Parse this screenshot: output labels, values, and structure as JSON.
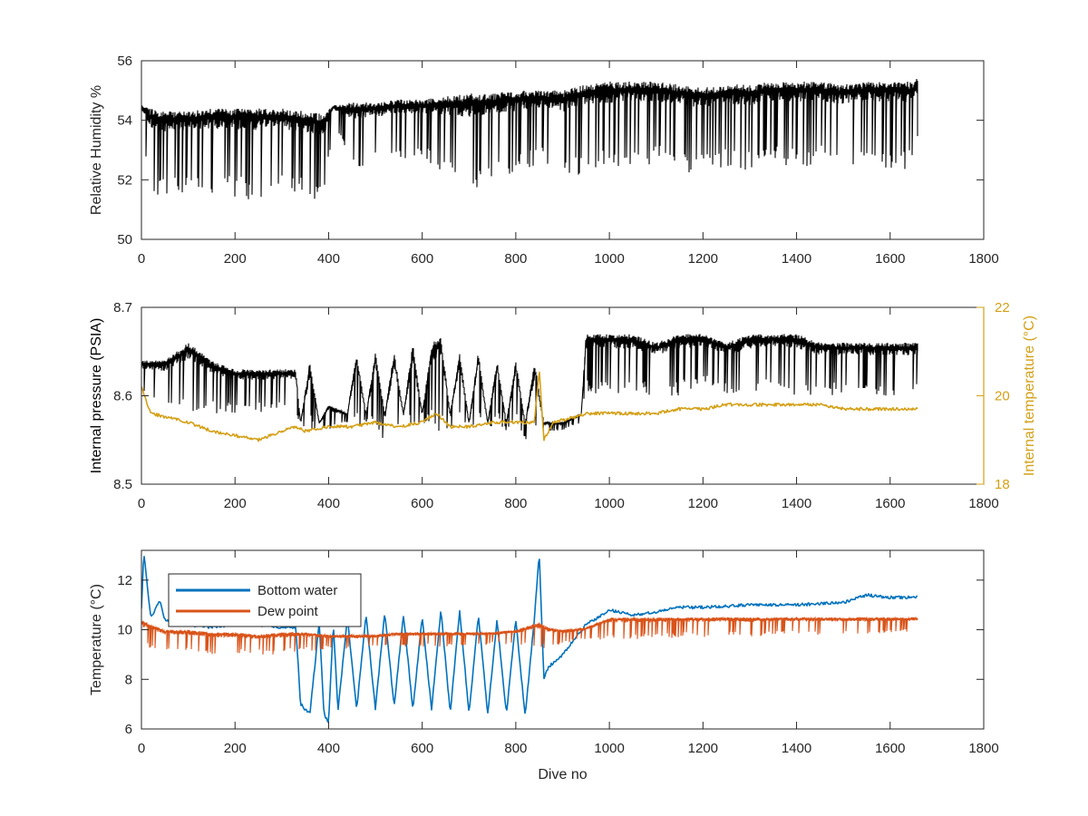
{
  "chart_data": [
    {
      "type": "line",
      "xlabel": "",
      "ylabel": "Relative Humidity %",
      "xlim": [
        0,
        1800
      ],
      "ylim": [
        50,
        56
      ],
      "xticks": [
        0,
        200,
        400,
        600,
        800,
        1000,
        1200,
        1400,
        1600,
        1800
      ],
      "yticks": [
        50,
        52,
        54,
        56
      ],
      "grid": false,
      "series": [
        {
          "color": "#000000",
          "x": [
            0,
            20,
            40,
            60,
            100,
            150,
            200,
            250,
            300,
            350,
            390,
            410,
            450,
            500,
            550,
            600,
            650,
            700,
            750,
            800,
            850,
            900,
            950,
            1000,
            1050,
            1100,
            1150,
            1200,
            1250,
            1300,
            1350,
            1400,
            1450,
            1500,
            1550,
            1600,
            1650,
            1660
          ],
          "upper": [
            54.5,
            54.4,
            54.3,
            54.3,
            54.3,
            54.4,
            54.4,
            54.4,
            54.4,
            54.3,
            54.2,
            54.5,
            54.6,
            54.6,
            54.7,
            54.7,
            54.8,
            54.9,
            54.9,
            55.0,
            55.0,
            55.0,
            55.2,
            55.3,
            55.3,
            55.3,
            55.2,
            55.1,
            55.2,
            55.2,
            55.3,
            55.3,
            55.3,
            55.2,
            55.3,
            55.3,
            55.3,
            55.5
          ],
          "lower": [
            54.0,
            51.4,
            51.4,
            51.5,
            51.6,
            51.5,
            51.4,
            51.3,
            51.5,
            51.3,
            51.2,
            53.8,
            52.3,
            52.5,
            52.6,
            52.7,
            52.1,
            51.6,
            52.0,
            52.1,
            52.6,
            51.9,
            52.3,
            52.3,
            52.4,
            52.5,
            52.3,
            52.1,
            52.4,
            52.3,
            52.6,
            52.4,
            52.5,
            52.4,
            52.4,
            52.4,
            52.3,
            53.6
          ]
        }
      ]
    },
    {
      "type": "line",
      "xlabel": "",
      "ylabel": "Internal pressure (PSIA)",
      "y2label": "Internal temperature (°C)",
      "xlim": [
        0,
        1800
      ],
      "ylim": [
        8.5,
        8.7
      ],
      "y2lim": [
        18,
        22
      ],
      "xticks": [
        0,
        200,
        400,
        600,
        800,
        1000,
        1200,
        1400,
        1600,
        1800
      ],
      "yticks": [
        8.5,
        8.6,
        8.7
      ],
      "y2ticks": [
        18,
        20,
        22
      ],
      "grid": false,
      "series": [
        {
          "color": "#000000",
          "axis": "left",
          "x": [
            0,
            50,
            100,
            150,
            200,
            250,
            300,
            330,
            340,
            360,
            380,
            400,
            440,
            460,
            480,
            500,
            520,
            540,
            560,
            580,
            600,
            620,
            640,
            660,
            680,
            700,
            720,
            740,
            760,
            780,
            800,
            820,
            840,
            860,
            880,
            900,
            940,
            950,
            1000,
            1050,
            1100,
            1150,
            1200,
            1250,
            1300,
            1350,
            1400,
            1450,
            1500,
            1550,
            1600,
            1650,
            1660
          ],
          "upper": [
            8.64,
            8.64,
            8.66,
            8.64,
            8.63,
            8.63,
            8.63,
            8.63,
            8.57,
            8.64,
            8.57,
            8.59,
            8.58,
            8.65,
            8.58,
            8.65,
            8.58,
            8.65,
            8.58,
            8.66,
            8.58,
            8.66,
            8.67,
            8.58,
            8.65,
            8.57,
            8.65,
            8.57,
            8.64,
            8.57,
            8.64,
            8.57,
            8.64,
            8.57,
            8.57,
            8.57,
            8.58,
            8.67,
            8.67,
            8.67,
            8.66,
            8.67,
            8.67,
            8.66,
            8.67,
            8.67,
            8.67,
            8.66,
            8.66,
            8.66,
            8.66,
            8.66,
            8.66
          ],
          "lower": [
            8.6,
            8.59,
            8.58,
            8.58,
            8.58,
            8.58,
            8.58,
            8.58,
            8.56,
            8.56,
            8.56,
            8.56,
            8.57,
            8.56,
            8.57,
            8.56,
            8.55,
            8.56,
            8.57,
            8.56,
            8.57,
            8.56,
            8.56,
            8.56,
            8.57,
            8.56,
            8.57,
            8.56,
            8.57,
            8.56,
            8.57,
            8.55,
            8.55,
            8.56,
            8.56,
            8.56,
            8.57,
            8.6,
            8.6,
            8.6,
            8.6,
            8.6,
            8.61,
            8.6,
            8.6,
            8.61,
            8.6,
            8.6,
            8.6,
            8.6,
            8.6,
            8.6,
            8.61
          ]
        },
        {
          "color": "#d4a017",
          "axis": "right",
          "x": [
            0,
            20,
            60,
            100,
            150,
            200,
            250,
            300,
            330,
            350,
            400,
            450,
            500,
            550,
            600,
            630,
            660,
            700,
            750,
            800,
            840,
            850,
            860,
            880,
            920,
            950,
            1000,
            1050,
            1100,
            1150,
            1200,
            1250,
            1300,
            1350,
            1400,
            1450,
            1500,
            1550,
            1600,
            1650,
            1660
          ],
          "y": [
            20.2,
            19.6,
            19.5,
            19.4,
            19.2,
            19.1,
            19.0,
            19.2,
            19.3,
            19.2,
            19.3,
            19.3,
            19.4,
            19.3,
            19.4,
            19.6,
            19.3,
            19.3,
            19.4,
            19.4,
            19.4,
            20.6,
            19.0,
            19.4,
            19.5,
            19.6,
            19.6,
            19.6,
            19.6,
            19.7,
            19.7,
            19.8,
            19.8,
            19.8,
            19.8,
            19.8,
            19.7,
            19.7,
            19.7,
            19.7,
            19.7
          ]
        }
      ]
    },
    {
      "type": "line",
      "xlabel": "Dive no",
      "ylabel": "Temperature (°C)",
      "xlim": [
        0,
        1800
      ],
      "ylim": [
        6,
        13.2
      ],
      "xticks": [
        0,
        200,
        400,
        600,
        800,
        1000,
        1200,
        1400,
        1600,
        1800
      ],
      "yticks": [
        6,
        8,
        10,
        12
      ],
      "grid": false,
      "legend": "top-left",
      "series": [
        {
          "name": "Bottom water",
          "color": "#0072bd",
          "x": [
            0,
            5,
            20,
            40,
            50,
            100,
            150,
            200,
            250,
            300,
            330,
            340,
            360,
            380,
            390,
            400,
            410,
            420,
            440,
            460,
            480,
            500,
            520,
            540,
            560,
            580,
            600,
            620,
            640,
            660,
            680,
            700,
            720,
            740,
            760,
            780,
            800,
            820,
            840,
            850,
            860,
            870,
            900,
            920,
            950,
            1000,
            1050,
            1100,
            1150,
            1200,
            1300,
            1400,
            1500,
            1550,
            1600,
            1660
          ],
          "y": [
            10.8,
            13.1,
            10.5,
            11.2,
            10.4,
            10.2,
            10.1,
            10.2,
            10.2,
            10.1,
            10.1,
            7.0,
            6.6,
            10.3,
            6.6,
            6.3,
            10.3,
            6.7,
            10.5,
            6.8,
            10.6,
            6.8,
            10.7,
            6.9,
            10.6,
            6.8,
            10.5,
            6.8,
            10.8,
            6.6,
            10.8,
            6.6,
            10.6,
            6.6,
            10.4,
            6.6,
            10.4,
            6.5,
            10.5,
            13.1,
            8.0,
            8.5,
            9.0,
            9.5,
            10.2,
            10.8,
            10.6,
            10.7,
            10.9,
            10.9,
            11.0,
            11.0,
            11.1,
            11.4,
            11.3,
            11.3
          ]
        },
        {
          "name": "Dew point",
          "color": "#d95319",
          "x": [
            0,
            50,
            100,
            150,
            200,
            250,
            300,
            350,
            400,
            450,
            500,
            550,
            600,
            650,
            700,
            750,
            800,
            850,
            870,
            900,
            950,
            1000,
            1050,
            1100,
            1150,
            1200,
            1250,
            1300,
            1350,
            1400,
            1450,
            1500,
            1550,
            1600,
            1660
          ],
          "upper": [
            10.4,
            10.0,
            10.0,
            9.9,
            9.9,
            9.8,
            9.9,
            9.9,
            9.8,
            9.8,
            9.8,
            9.9,
            9.9,
            9.9,
            9.9,
            9.9,
            10.0,
            10.3,
            10.1,
            10.0,
            10.1,
            10.5,
            10.5,
            10.5,
            10.5,
            10.5,
            10.5,
            10.5,
            10.5,
            10.5,
            10.5,
            10.5,
            10.5,
            10.5,
            10.5
          ],
          "lower": [
            9.2,
            9.2,
            9.1,
            9.0,
            9.0,
            9.0,
            9.0,
            9.1,
            9.2,
            9.2,
            9.3,
            9.3,
            9.3,
            9.3,
            9.3,
            9.4,
            9.4,
            9.2,
            9.3,
            9.4,
            9.6,
            9.6,
            9.6,
            9.6,
            9.7,
            9.7,
            9.8,
            9.7,
            9.8,
            9.8,
            9.8,
            9.8,
            9.8,
            9.9,
            9.9
          ]
        }
      ]
    }
  ]
}
